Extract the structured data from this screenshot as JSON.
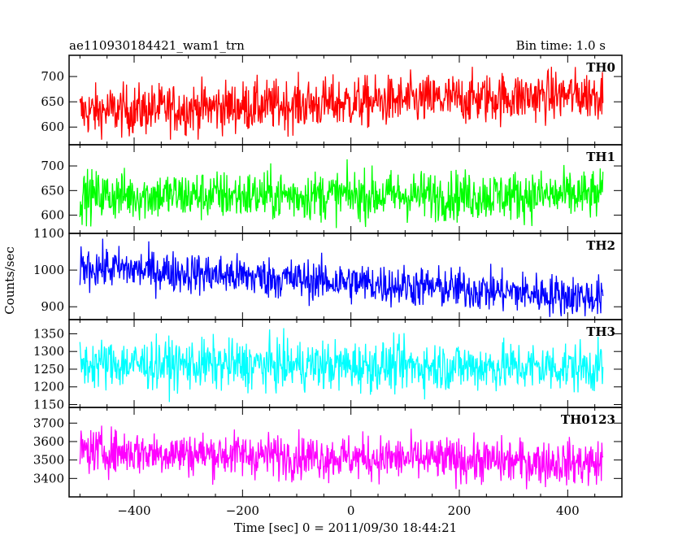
{
  "header": {
    "left_title": "ae110930184421_wam1_trn",
    "right_title": "Bin time: 1.0 s"
  },
  "chart_data": {
    "type": "line",
    "title": "ae110930184421_wam1_trn",
    "bin_time_label": "Bin time: 1.0 s",
    "xlabel": "Time [sec] 0 = 2011/09/30 18:44:21",
    "ylabel": "Counts/sec",
    "xlim": [
      -520,
      500
    ],
    "x_range_data": [
      -500,
      465
    ],
    "xticks": [
      -400,
      -200,
      0,
      200,
      400
    ],
    "x_tick_labels": [
      "−400",
      "−200",
      "0",
      "200",
      "400"
    ],
    "panels": [
      {
        "name": "TH0",
        "color": "#ff0000",
        "ylim": [
          565,
          742
        ],
        "yticks": [
          600,
          650,
          700
        ],
        "y_tick_labels": [
          "600",
          "650",
          "700"
        ],
        "mean_start": 630,
        "mean_end": 665,
        "noise": 25,
        "y_clip": [
          575,
          742
        ]
      },
      {
        "name": "TH1",
        "color": "#00ff00",
        "ylim": [
          563,
          743
        ],
        "yticks": [
          600,
          650,
          700
        ],
        "y_tick_labels": [
          "600",
          "650",
          "700"
        ],
        "mean_start": 640,
        "mean_end": 640,
        "noise": 25,
        "y_clip": [
          568,
          743
        ]
      },
      {
        "name": "TH2",
        "color": "#0000ff",
        "ylim": [
          865,
          1100
        ],
        "yticks": [
          900,
          1000,
          1100
        ],
        "y_tick_labels": [
          "900",
          "1000",
          "1100"
        ],
        "mean_start": 1010,
        "mean_end": 925,
        "noise": 28,
        "y_clip": [
          870,
          1100
        ]
      },
      {
        "name": "TH3",
        "color": "#00ffff",
        "ylim": [
          1142,
          1390
        ],
        "yticks": [
          1150,
          1200,
          1250,
          1300,
          1350
        ],
        "y_tick_labels": [
          "1150",
          "1200",
          "1250",
          "1300",
          "1350"
        ],
        "mean_start": 1265,
        "mean_end": 1255,
        "noise": 35,
        "y_clip": [
          1150,
          1390
        ]
      },
      {
        "name": "TH0123",
        "color": "#ff00ff",
        "ylim": [
          3300,
          3785
        ],
        "yticks": [
          3400,
          3500,
          3600,
          3700
        ],
        "y_tick_labels": [
          "3400",
          "3500",
          "3600",
          "3700"
        ],
        "mean_start": 3550,
        "mean_end": 3480,
        "noise": 60,
        "y_clip": [
          3310,
          3785
        ]
      }
    ]
  }
}
